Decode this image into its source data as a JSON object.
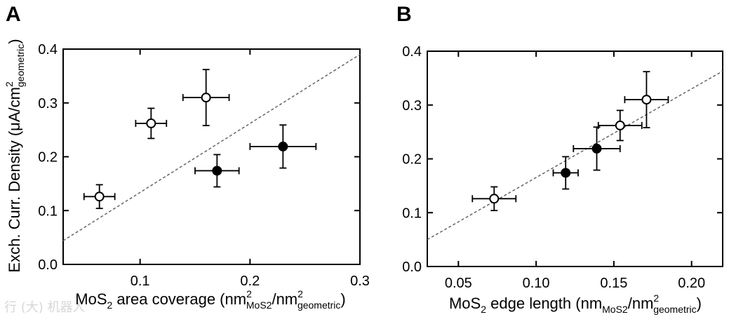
{
  "chart_data": [
    {
      "type": "scatter",
      "panel_label": "A",
      "title": "",
      "xlabel": {
        "main": "MoS",
        "sub1": "2",
        "mid": " area coverage (nm",
        "sup1": "2",
        "sub2": "MoS2",
        "mid2": "/nm",
        "sup2": "2",
        "sub3": "geometric",
        "end": ")"
      },
      "ylabel": {
        "main": "Exch. Curr. Density (",
        "mu": "μ",
        "mid": "A/cm",
        "sup": "2",
        "sub": "geometric",
        "end": ")"
      },
      "xlim": [
        0.03,
        0.3
      ],
      "ylim": [
        0.0,
        0.4
      ],
      "xticks": [
        0.1,
        0.2,
        0.3
      ],
      "xtick_labels": [
        "0.1",
        "0.2",
        "0.3"
      ],
      "yticks": [
        0.0,
        0.1,
        0.2,
        0.3,
        0.4
      ],
      "ytick_labels": [
        "0.0",
        "0.1",
        "0.2",
        "0.3",
        "0.4"
      ],
      "reference_line": {
        "style": "dashed",
        "x": [
          0.03,
          0.3
        ],
        "y": [
          0.044,
          0.39
        ]
      },
      "series": [
        {
          "name": "open circles",
          "marker": "open-circle",
          "points": [
            {
              "x": 0.063,
              "y": 0.126,
              "xerr": 0.014,
              "yerr": 0.022
            },
            {
              "x": 0.11,
              "y": 0.262,
              "xerr": 0.014,
              "yerr": 0.028
            },
            {
              "x": 0.16,
              "y": 0.31,
              "xerr": 0.021,
              "yerr": 0.052
            }
          ]
        },
        {
          "name": "filled circles",
          "marker": "filled-circle",
          "points": [
            {
              "x": 0.17,
              "y": 0.174,
              "xerr": 0.02,
              "yerr": 0.03
            },
            {
              "x": 0.23,
              "y": 0.219,
              "xerr": 0.03,
              "yerr": 0.04
            }
          ]
        }
      ]
    },
    {
      "type": "scatter",
      "panel_label": "B",
      "title": "",
      "xlabel": {
        "main": "MoS",
        "sub1": "2",
        "mid": " edge length (nm",
        "sub2": "MoS2",
        "mid2": "/nm",
        "sup2": "2",
        "sub3": "geometric",
        "end": ")"
      },
      "ylabel": null,
      "xlim": [
        0.03,
        0.22
      ],
      "ylim": [
        0.0,
        0.4
      ],
      "xticks": [
        0.05,
        0.1,
        0.15,
        0.2
      ],
      "xtick_labels": [
        "0.05",
        "0.10",
        "0.15",
        "0.20"
      ],
      "yticks": [
        0.0,
        0.1,
        0.2,
        0.3,
        0.4
      ],
      "ytick_labels": [
        "0.0",
        "0.1",
        "0.2",
        "0.3",
        "0.4"
      ],
      "reference_line": {
        "style": "dashed",
        "x": [
          0.03,
          0.22
        ],
        "y": [
          0.05,
          0.363
        ]
      },
      "series": [
        {
          "name": "open circles",
          "marker": "open-circle",
          "points": [
            {
              "x": 0.073,
              "y": 0.126,
              "xerr": 0.014,
              "yerr": 0.022
            },
            {
              "x": 0.154,
              "y": 0.262,
              "xerr": 0.014,
              "yerr": 0.028
            },
            {
              "x": 0.171,
              "y": 0.31,
              "xerr": 0.014,
              "yerr": 0.052
            }
          ]
        },
        {
          "name": "filled circles",
          "marker": "filled-circle",
          "points": [
            {
              "x": 0.119,
              "y": 0.174,
              "xerr": 0.008,
              "yerr": 0.03
            },
            {
              "x": 0.139,
              "y": 0.219,
              "xerr": 0.015,
              "yerr": 0.04
            }
          ]
        }
      ]
    }
  ],
  "watermark": "行 (大) 机器人"
}
